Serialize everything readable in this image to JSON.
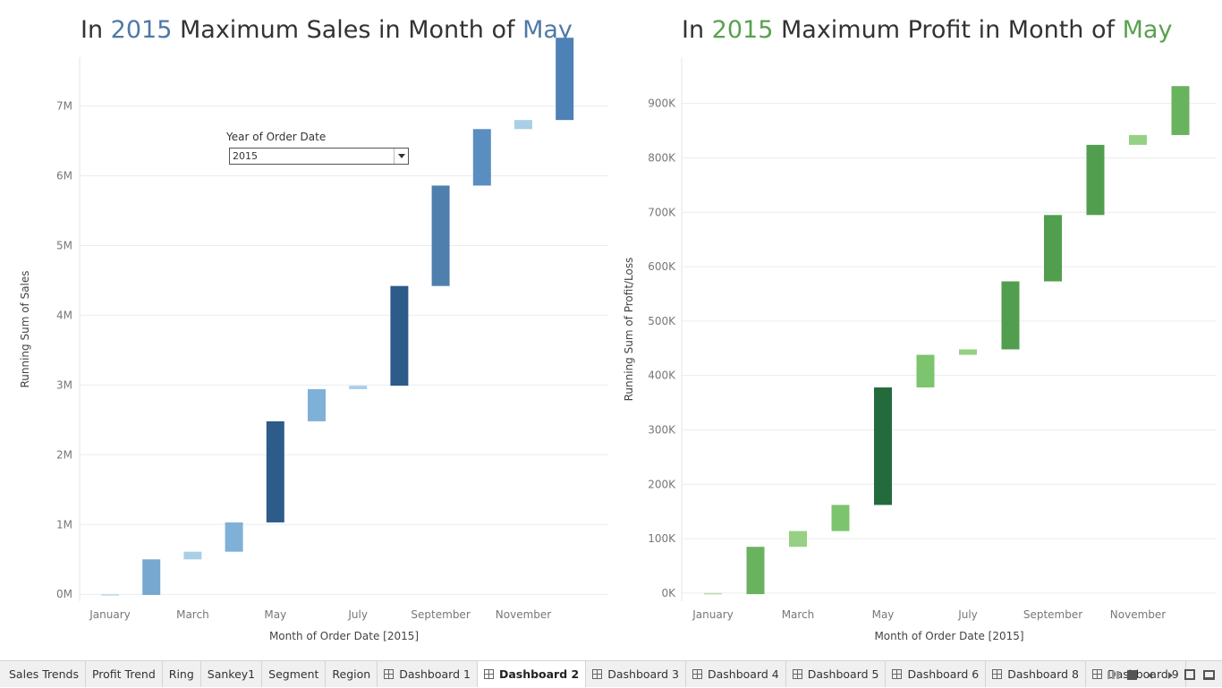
{
  "sales_title": {
    "prefix": "In ",
    "year": "2015",
    "middle": " Maximum Sales in Month of ",
    "month": "May"
  },
  "profit_title": {
    "prefix": "In ",
    "year": "2015",
    "middle": " Maximum Profit in Month of ",
    "month": "May"
  },
  "filter": {
    "label": "Year of Order Date",
    "value": "2015"
  },
  "chart_data": [
    {
      "type": "bar",
      "subtype": "waterfall",
      "title": "In 2015 Maximum Sales in Month of May",
      "xlabel": "Month of Order Date [2015]",
      "ylabel": "Running Sum of Sales",
      "x_tick_labels": [
        "January",
        "March",
        "May",
        "July",
        "September",
        "November"
      ],
      "y_ticks": [
        0,
        1000000,
        2000000,
        3000000,
        4000000,
        5000000,
        6000000,
        7000000
      ],
      "y_tick_labels": [
        "0M",
        "1M",
        "2M",
        "3M",
        "4M",
        "5M",
        "6M",
        "7M"
      ],
      "ylim": [
        -100000,
        7700000
      ],
      "grid": true,
      "categories": [
        "January",
        "February",
        "March",
        "April",
        "May",
        "June",
        "July",
        "August",
        "September",
        "October",
        "November",
        "December"
      ],
      "values": [
        -10000,
        510000,
        110000,
        420000,
        1450000,
        460000,
        50000,
        1430000,
        1440000,
        810000,
        130000,
        1180000
      ],
      "running_end": [
        -10000,
        500000,
        610000,
        1030000,
        2480000,
        2940000,
        2990000,
        4420000,
        5860000,
        6670000,
        6800000,
        7980000
      ],
      "colors": [
        "#bfd8ea",
        "#77a8d0",
        "#a9cfe7",
        "#7fb0d8",
        "#2d5b8a",
        "#7fb0d8",
        "#a9cfe7",
        "#2d5b8a",
        "#4f7fad",
        "#5a8ec0",
        "#a9cfe7",
        "#4e81b5"
      ]
    },
    {
      "type": "bar",
      "subtype": "waterfall",
      "title": "In 2015 Maximum Profit in Month of May",
      "xlabel": "Month of Order Date [2015]",
      "ylabel": "Running Sum of Profit/Loss",
      "x_tick_labels": [
        "January",
        "March",
        "May",
        "July",
        "September",
        "November"
      ],
      "y_ticks": [
        0,
        100000,
        200000,
        300000,
        400000,
        500000,
        600000,
        700000,
        800000,
        900000
      ],
      "y_tick_labels": [
        "0K",
        "100K",
        "200K",
        "300K",
        "400K",
        "500K",
        "600K",
        "700K",
        "800K",
        "900K"
      ],
      "ylim": [
        -15000,
        985000
      ],
      "grid": true,
      "categories": [
        "January",
        "February",
        "March",
        "April",
        "May",
        "June",
        "July",
        "August",
        "September",
        "October",
        "November",
        "December"
      ],
      "values": [
        -2000,
        87000,
        29000,
        48000,
        216000,
        60000,
        10000,
        125000,
        122000,
        129000,
        18000,
        90000
      ],
      "running_end": [
        -2000,
        85000,
        114000,
        162000,
        378000,
        438000,
        448000,
        573000,
        695000,
        824000,
        842000,
        932000
      ],
      "colors": [
        "#b7dca6",
        "#6ab35e",
        "#96d084",
        "#7cc46d",
        "#236b3c",
        "#7cc46d",
        "#96d084",
        "#519e4f",
        "#519e4f",
        "#519e4f",
        "#96d084",
        "#6ab35e"
      ]
    }
  ],
  "tabs": [
    {
      "label": "Sales Trends",
      "icon": ""
    },
    {
      "label": "Profit Trend",
      "icon": ""
    },
    {
      "label": "Ring",
      "icon": ""
    },
    {
      "label": "Sankey1",
      "icon": ""
    },
    {
      "label": "Segment",
      "icon": ""
    },
    {
      "label": "Region",
      "icon": ""
    },
    {
      "label": "Dashboard 1",
      "icon": "dashboard-icon"
    },
    {
      "label": "Dashboard 2",
      "icon": "dashboard-icon",
      "active": true
    },
    {
      "label": "Dashboard 3",
      "icon": "dashboard-icon"
    },
    {
      "label": "Dashboard 4",
      "icon": "dashboard-icon"
    },
    {
      "label": "Dashboard 5",
      "icon": "dashboard-icon"
    },
    {
      "label": "Dashboard 6",
      "icon": "dashboard-icon"
    },
    {
      "label": "Dashboard 8",
      "icon": "dashboard-icon"
    },
    {
      "label": "Dashboard 9",
      "icon": "dashboard-icon"
    }
  ]
}
